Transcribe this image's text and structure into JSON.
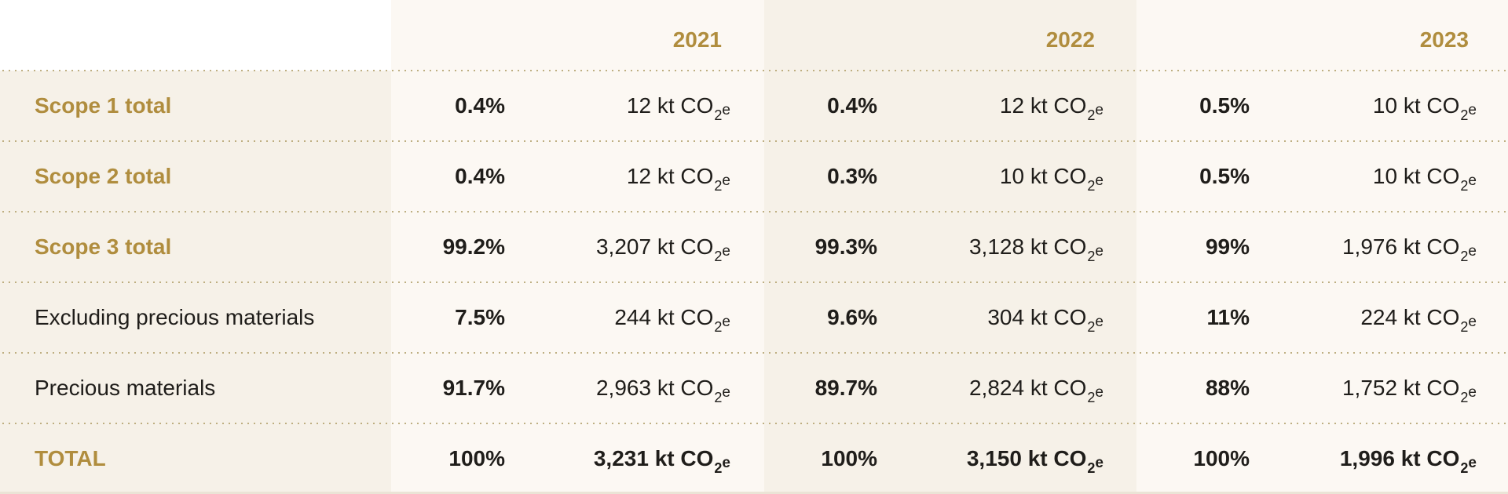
{
  "table": {
    "header": {
      "label": "",
      "years": [
        "2021",
        "2022",
        "2023"
      ]
    },
    "unit": {
      "prefix": "kt CO",
      "subscript": "2",
      "suffix": "e"
    },
    "rows": [
      {
        "label": "Scope 1 total",
        "style": "gold",
        "values": [
          {
            "pct": "0.4%",
            "amount": "12"
          },
          {
            "pct": "0.4%",
            "amount": "12"
          },
          {
            "pct": "0.5%",
            "amount": "10"
          }
        ]
      },
      {
        "label": "Scope 2 total",
        "style": "gold",
        "values": [
          {
            "pct": "0.4%",
            "amount": "12"
          },
          {
            "pct": "0.3%",
            "amount": "10"
          },
          {
            "pct": "0.5%",
            "amount": "10"
          }
        ]
      },
      {
        "label": "Scope 3 total",
        "style": "gold",
        "values": [
          {
            "pct": "99.2%",
            "amount": "3,207"
          },
          {
            "pct": "99.3%",
            "amount": "3,128"
          },
          {
            "pct": "99%",
            "amount": "1,976"
          }
        ]
      },
      {
        "label": "Excluding precious materials",
        "style": "plain",
        "values": [
          {
            "pct": "7.5%",
            "amount": "244"
          },
          {
            "pct": "9.6%",
            "amount": "304"
          },
          {
            "pct": "11%",
            "amount": "224"
          }
        ]
      },
      {
        "label": "Precious materials",
        "style": "plain",
        "values": [
          {
            "pct": "91.7%",
            "amount": "2,963"
          },
          {
            "pct": "89.7%",
            "amount": "2,824"
          },
          {
            "pct": "88%",
            "amount": "1,752"
          }
        ]
      },
      {
        "label": "TOTAL",
        "style": "gold",
        "values": [
          {
            "pct": "100%",
            "amount": "3,231"
          },
          {
            "pct": "100%",
            "amount": "3,150"
          },
          {
            "pct": "100%",
            "amount": "1,996"
          }
        ]
      }
    ]
  },
  "colors": {
    "accent_gold": "#b08d3e",
    "label_column_bg": "#f6f1e8",
    "light_column_bg": "#fcf8f3",
    "shaded_column_bg": "#f6f1e8",
    "divider_dots": "#b5a470",
    "text": "#1f1d1a"
  }
}
